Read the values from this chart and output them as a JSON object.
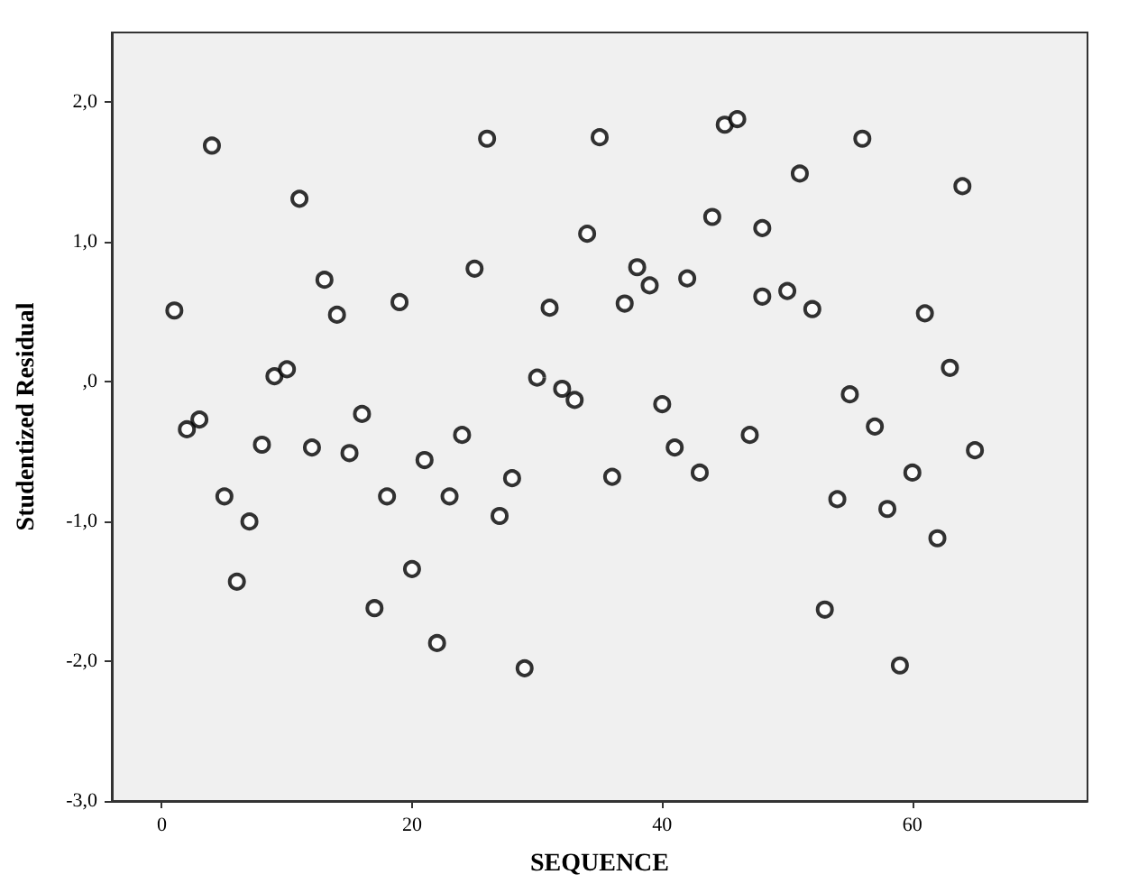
{
  "chart_data": {
    "type": "scatter",
    "xlabel": "SEQUENCE",
    "ylabel": "Studentized Residual",
    "x": [
      1,
      2,
      3,
      4,
      5,
      6,
      7,
      8,
      9,
      10,
      11,
      12,
      13,
      14,
      15,
      16,
      17,
      18,
      19,
      20,
      21,
      22,
      23,
      24,
      25,
      26,
      27,
      28,
      29,
      30,
      31,
      32,
      33,
      34,
      35,
      36,
      37,
      38,
      39,
      40,
      41,
      42,
      43,
      44,
      45,
      46,
      47,
      48,
      48,
      50,
      51,
      52,
      53,
      54,
      55,
      56,
      57,
      58,
      59,
      60,
      61,
      62,
      63,
      64,
      65
    ],
    "series": [
      {
        "color": "#000000",
        "values": [
          0.51,
          -0.34,
          -0.27,
          1.69,
          -0.82,
          -1.43,
          -1.0,
          -0.45,
          0.04,
          0.09,
          1.31,
          -0.47,
          0.73,
          0.48,
          -0.51,
          -0.23,
          -1.62,
          -0.82,
          0.57,
          -1.34,
          -0.56,
          -1.87,
          -0.82,
          -0.38,
          0.81,
          1.74,
          -0.96,
          -0.69,
          -2.05,
          0.03,
          0.53,
          -0.05,
          -0.13,
          1.06,
          1.75,
          -0.68,
          0.56,
          0.82,
          0.69,
          -0.16,
          -0.47,
          0.74,
          -0.65,
          1.18,
          1.84,
          1.88,
          -0.38,
          1.1,
          0.61,
          0.65,
          1.49,
          0.52,
          -1.63,
          -0.84,
          -0.09,
          1.74,
          -0.32,
          -0.91,
          -2.03,
          -0.65,
          0.49,
          -1.12,
          0.1,
          1.4,
          -0.49
        ]
      }
    ],
    "xlim": [
      -4,
      74
    ],
    "xticks": [
      0,
      20,
      40,
      60
    ],
    "ylim": [
      -3,
      2.5
    ],
    "yticks": [
      {
        "value": -3,
        "label": "-3,0"
      },
      {
        "value": -2,
        "label": "-2,0"
      },
      {
        "value": -1,
        "label": "-1,0"
      },
      {
        "value": 0,
        "label": ",0"
      },
      {
        "value": 1,
        "label": "1,0"
      },
      {
        "value": 2,
        "label": "2,0"
      }
    ],
    "marker": "circle",
    "grid": false
  }
}
